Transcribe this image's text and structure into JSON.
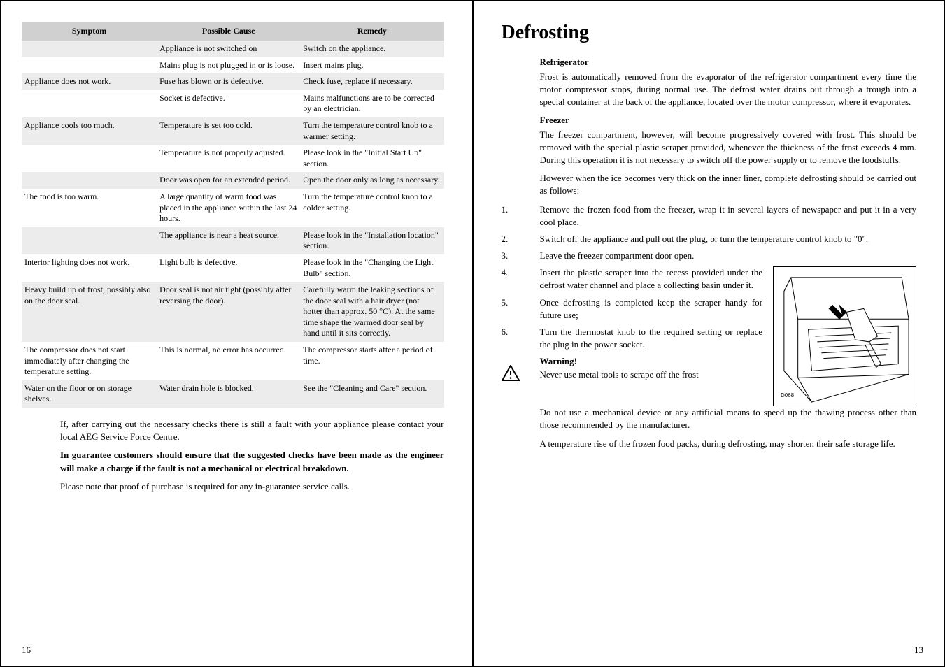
{
  "left_page": {
    "table": {
      "headers": [
        "Symptom",
        "Possible Cause",
        "Remedy"
      ],
      "rows": [
        {
          "shaded": true,
          "cells": [
            "",
            "Appliance is not switched on",
            "Switch on the appliance."
          ],
          "rowspan_col0": null
        },
        {
          "shaded": false,
          "cells": [
            "",
            "Mains plug is not plugged in or is loose.",
            "Insert mains plug."
          ]
        },
        {
          "shaded": true,
          "cells": [
            "Appliance does not work.",
            "Fuse has blown or is defective.",
            "Check fuse, replace if necessary."
          ]
        },
        {
          "shaded": false,
          "cells": [
            "",
            "Socket is defective.",
            "Mains malfunctions are to be corrected by an electrician."
          ]
        },
        {
          "shaded": true,
          "cells": [
            "Appliance cools too much.",
            "Temperature is set too cold.",
            "Turn the temperature control knob to a warmer setting."
          ]
        },
        {
          "shaded": false,
          "cells": [
            "",
            "Temperature is not properly adjusted.",
            "Please look in the \"Initial Start Up\" section."
          ]
        },
        {
          "shaded": true,
          "cells": [
            "",
            "Door was open for an extended period.",
            "Open the door only as long as necessary."
          ]
        },
        {
          "shaded": false,
          "cells": [
            "The food is too warm.",
            "A large quantity of warm food was placed in the appliance within the last 24 hours.",
            "Turn the temperature control knob to a colder setting."
          ]
        },
        {
          "shaded": true,
          "cells": [
            "",
            "The appliance is near a heat source.",
            "Please look in the \"Installation location\" section."
          ]
        },
        {
          "shaded": false,
          "cells": [
            "Interior lighting does not work.",
            "Light bulb is defective.",
            "Please look in the \"Changing the Light Bulb\" section."
          ]
        },
        {
          "shaded": true,
          "cells": [
            "Heavy build up of frost, possibly also on the door seal.",
            "Door seal is not air tight (possibly after reversing the door).",
            "Carefully warm the leaking sections of the door seal with a hair dryer (not hotter than approx. 50 °C). At the same time shape the warmed door seal by hand until it sits correctly."
          ]
        },
        {
          "shaded": false,
          "cells": [
            "The compressor does not start immediately after changing the temperature setting.",
            "This is normal, no error has occurred.",
            "The compressor starts after a period of time."
          ]
        },
        {
          "shaded": true,
          "cells": [
            "Water on the floor or on storage shelves.",
            "Water drain hole is blocked.",
            "See the \"Cleaning and Care\" section."
          ]
        }
      ]
    },
    "p1": "If, after carrying out the necessary checks there is still a fault with your appliance please contact your local AEG Service Force Centre.",
    "p2": "In guarantee customers should ensure that the suggested checks have been made as the engineer will make a charge if the fault is not a mechanical or electrical breakdown.",
    "p3": "Please note that proof of purchase is required for any in-guarantee service calls.",
    "pagenum": "16"
  },
  "right_page": {
    "title": "Defrosting",
    "h_ref": "Refrigerator",
    "ref_text": "Frost is automatically removed from the evaporator of the refrigerator compartment every time the motor compressor stops, during normal use. The defrost water drains out through a trough into a special container at the back of the appliance, located over the motor compressor, where it evaporates.",
    "h_frz": "Freezer",
    "frz_text1": "The freezer compartment, however, will become progressively covered with frost. This should be removed with the special plastic scraper provided, whenever the thickness of the frost exceeds 4 mm. During this operation it is not necessary to switch off the power supply or to remove the foodstuffs.",
    "frz_text2": "However when the ice becomes very thick on the inner liner, complete defrosting should be carried out as follows:",
    "steps": [
      "Remove the frozen food from the freezer, wrap it in several layers of newspaper and put it in a very cool place.",
      "Switch off the appliance and pull out the plug, or turn the temperature control knob to \"0\".",
      "Leave the freezer compartment door open.",
      "Insert the plastic scraper into the recess provided under the defrost water channel and place a collecting basin under it.",
      "Once defrosting is completed keep the scraper handy for future use;",
      "Turn the thermostat knob to the required setting or replace the plug in the power socket."
    ],
    "warn_h": "Warning!",
    "warn_text": "Never use metal tools to scrape off the frost",
    "warn_p2": "Do not use a mechanical device or any artificial means to speed up the thawing process other than those recommended by the manufacturer.",
    "warn_p3": "A temperature rise of the frozen food packs, during defrosting, may shorten their safe storage life.",
    "fig_label": "D068",
    "pagenum": "13"
  }
}
